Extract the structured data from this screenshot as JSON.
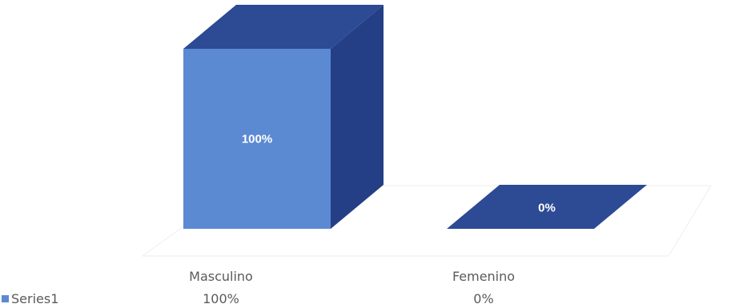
{
  "chart_data": {
    "type": "bar",
    "style": "3d-column",
    "categories": [
      "Masculino",
      "Femenino"
    ],
    "series": [
      {
        "name": "Series1",
        "values": [
          100,
          0
        ],
        "labels": [
          "100%",
          "0%"
        ]
      }
    ],
    "ylim": [
      0,
      100
    ],
    "grid": false,
    "legend": "bottom-left",
    "data_table": true,
    "colors": {
      "front": "#5b8ad3",
      "top": "#2d4a94",
      "side": "#243f85",
      "legend_key": "#5b8ad3"
    }
  }
}
